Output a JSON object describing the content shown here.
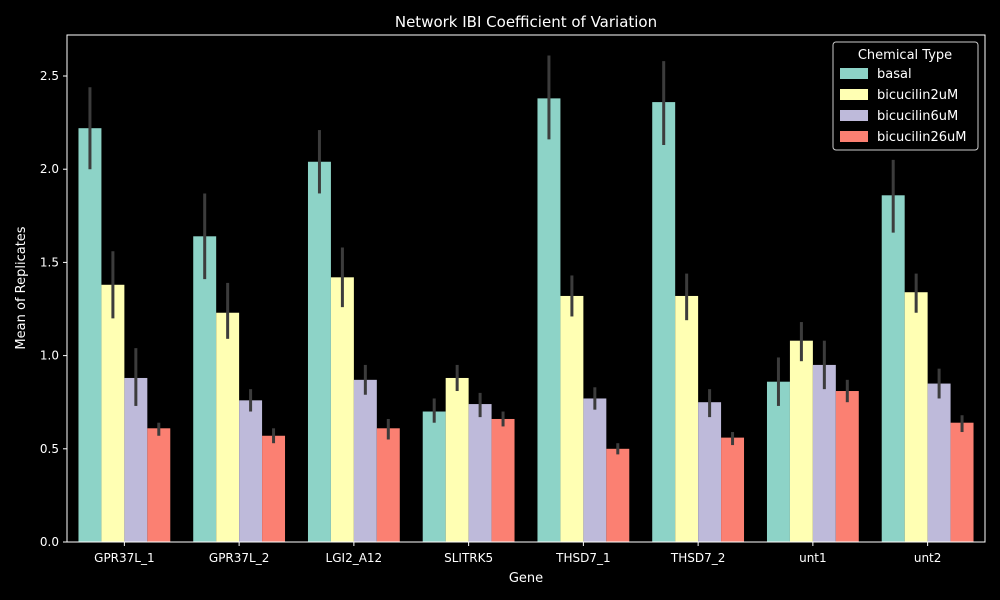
{
  "chart_data": {
    "type": "bar",
    "title": "Network IBI Coefficient of Variation",
    "xlabel": "Gene",
    "ylabel": "Mean of Replicates",
    "ylim": [
      0,
      2.72
    ],
    "yticks": [
      0.0,
      0.5,
      1.0,
      1.5,
      2.0,
      2.5
    ],
    "ytick_labels": [
      "0.0",
      "0.5",
      "1.0",
      "1.5",
      "2.0",
      "2.5"
    ],
    "grid": false,
    "legend": {
      "title": "Chemical Type",
      "placement": "top-right"
    },
    "categories": [
      "GPR37L_1",
      "GPR37L_2",
      "LGI2_A12",
      "SLITRK5",
      "THSD7_1",
      "THSD7_2",
      "unt1",
      "unt2"
    ],
    "series": [
      {
        "name": "basal",
        "color": "#8dd3c7",
        "values": [
          2.22,
          1.64,
          2.04,
          0.7,
          2.38,
          2.36,
          0.86,
          1.86
        ],
        "err_low": [
          2.0,
          1.41,
          1.87,
          0.64,
          2.16,
          2.13,
          0.73,
          1.66
        ],
        "err_high": [
          2.44,
          1.87,
          2.21,
          0.77,
          2.61,
          2.58,
          0.99,
          2.05
        ]
      },
      {
        "name": "bicucilin2uM",
        "color": "#ffffb3",
        "values": [
          1.38,
          1.23,
          1.42,
          0.88,
          1.32,
          1.32,
          1.08,
          1.34
        ],
        "err_low": [
          1.2,
          1.09,
          1.26,
          0.81,
          1.21,
          1.19,
          0.97,
          1.23
        ],
        "err_high": [
          1.56,
          1.39,
          1.58,
          0.95,
          1.43,
          1.44,
          1.18,
          1.44
        ]
      },
      {
        "name": "bicucilin6uM",
        "color": "#bebada",
        "values": [
          0.88,
          0.76,
          0.87,
          0.74,
          0.77,
          0.75,
          0.95,
          0.85
        ],
        "err_low": [
          0.73,
          0.7,
          0.79,
          0.67,
          0.71,
          0.67,
          0.82,
          0.77
        ],
        "err_high": [
          1.04,
          0.82,
          0.95,
          0.8,
          0.83,
          0.82,
          1.08,
          0.93
        ]
      },
      {
        "name": "bicucilin26uM",
        "color": "#fb8072",
        "values": [
          0.61,
          0.57,
          0.61,
          0.66,
          0.5,
          0.56,
          0.81,
          0.64
        ],
        "err_low": [
          0.57,
          0.53,
          0.55,
          0.62,
          0.47,
          0.52,
          0.75,
          0.59
        ],
        "err_high": [
          0.64,
          0.61,
          0.66,
          0.7,
          0.53,
          0.59,
          0.87,
          0.68
        ]
      }
    ]
  }
}
